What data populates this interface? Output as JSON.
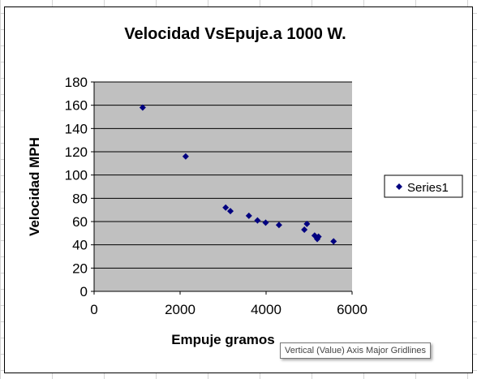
{
  "tooltip": "Vertical (Value) Axis Major Gridlines",
  "colors": {
    "plot_bg": "#c0c0c0",
    "marker": "#000080",
    "gridline": "#000000"
  },
  "chart_data": {
    "type": "scatter",
    "title": "Velocidad VsEpuje.a 1000 W.",
    "xlabel": "Empuje gramos",
    "ylabel": "Velocidad MPH",
    "xlim": [
      0,
      6000
    ],
    "ylim": [
      0,
      180
    ],
    "xticks": [
      0,
      2000,
      4000,
      6000
    ],
    "yticks": [
      0,
      20,
      40,
      60,
      80,
      100,
      120,
      140,
      160,
      180
    ],
    "grid": "horizontal",
    "legend": "right",
    "marker": "diamond",
    "series": [
      {
        "name": "Series1",
        "x": [
          1130,
          2130,
          3060,
          3170,
          3600,
          3800,
          3990,
          4300,
          4890,
          4950,
          5130,
          5190,
          5220,
          5570
        ],
        "y": [
          158,
          116,
          72,
          69,
          65,
          61,
          59,
          57,
          53,
          58,
          48,
          45,
          47,
          43
        ]
      }
    ]
  }
}
